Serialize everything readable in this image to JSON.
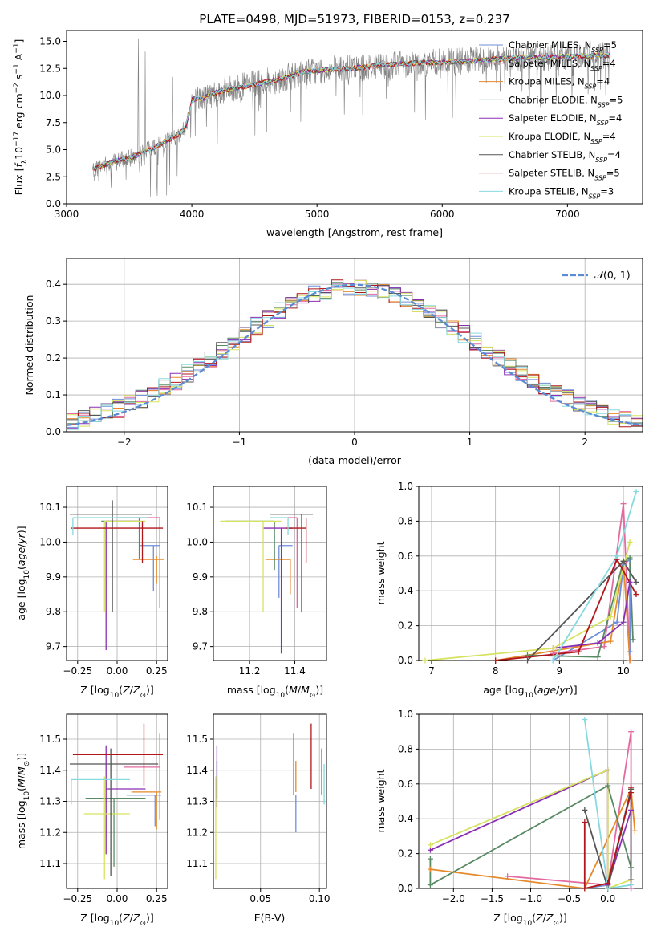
{
  "colors": {
    "Chabrier MILES": "#6f8fd8",
    "Salpeter MILES": "#e36aa0",
    "Kroupa MILES": "#e5892a",
    "Chabrier ELODIE": "#5a8a64",
    "Salpeter ELODIE": "#8a2fb4",
    "Kroupa ELODIE": "#d6e35e",
    "Chabrier STELIB": "#555555",
    "Salpeter STELIB": "#b0161a",
    "Kroupa STELIB": "#86d9df",
    "data": "#808080",
    "gauss": "#5b8bd2"
  },
  "chart_data": [
    {
      "type": "line",
      "title": "PLATE=0498, MJD=51973, FIBERID=0153, z=0.237",
      "xlabel": "wavelength [Angstrom, rest frame]",
      "ylabel": "Flux [f_λ 10^-17 erg cm^-2 s^-1 A^-1]",
      "xlim": [
        3000,
        7600
      ],
      "ylim": [
        0,
        16
      ],
      "xticks": [
        "3000",
        "4000",
        "5000",
        "6000",
        "7000"
      ],
      "yticks": [
        "0.0",
        "2.5",
        "5.0",
        "7.5",
        "10.0",
        "12.5",
        "15.0"
      ],
      "legend": "right",
      "legend_entries": [
        {
          "label": "Chabrier MILES, N",
          "sub": "SSP",
          "tail": "=5"
        },
        {
          "label": "Salpeter MILES, N",
          "sub": "SSP",
          "tail": "=4"
        },
        {
          "label": "Kroupa MILES, N",
          "sub": "SSP",
          "tail": "=4"
        },
        {
          "label": "Chabrier ELODIE, N",
          "sub": "SSP",
          "tail": "=5"
        },
        {
          "label": "Salpeter ELODIE, N",
          "sub": "SSP",
          "tail": "=4"
        },
        {
          "label": "Kroupa ELODIE, N",
          "sub": "SSP",
          "tail": "=4"
        },
        {
          "label": "Chabrier STELIB, N",
          "sub": "SSP",
          "tail": "=4"
        },
        {
          "label": "Salpeter STELIB, N",
          "sub": "SSP",
          "tail": "=5"
        },
        {
          "label": "Kroupa STELIB, N",
          "sub": "SSP",
          "tail": "=3"
        }
      ],
      "model_continuum": {
        "x": [
          3200,
          3300,
          3400,
          3500,
          3600,
          3700,
          3800,
          3900,
          3950,
          4000,
          4100,
          4200,
          4300,
          4500,
          4700,
          4900,
          5100,
          5300,
          5500,
          5800,
          6100,
          6500,
          7000,
          7300
        ],
        "y": [
          3.1,
          3.6,
          4.0,
          4.2,
          4.7,
          5.2,
          5.8,
          6.5,
          7.0,
          9.6,
          9.8,
          10.3,
          10.6,
          11.0,
          11.5,
          12.2,
          12.4,
          12.5,
          12.8,
          13.0,
          13.1,
          13.4,
          13.6,
          13.7
        ]
      }
    },
    {
      "type": "bar",
      "xlabel": "(data-model)/error",
      "ylabel": "Normed distribution",
      "xlim": [
        -2.5,
        2.5
      ],
      "ylim": [
        0,
        0.47
      ],
      "xticks": [
        "−2",
        "−1",
        "0",
        "1",
        "2"
      ],
      "yticks": [
        "0.0",
        "0.1",
        "0.2",
        "0.3",
        "0.4"
      ],
      "legend_label": "N(0,1)",
      "bin_width": 0.1,
      "normal_curve": {
        "mean": 0,
        "sigma": 1
      }
    },
    {
      "type": "scatter",
      "xlabel": "Z [log10(Z/Z⊙)]",
      "ylabel": "age  [log10(age/yr)]",
      "xlim": [
        -0.32,
        0.32
      ],
      "ylim": [
        9.66,
        10.16
      ],
      "xticks": [
        "−0.25",
        "0.00",
        "0.25"
      ],
      "yticks": [
        "9.7",
        "9.8",
        "9.9",
        "10.0",
        "10.1"
      ],
      "series": [
        {
          "name": "Chabrier MILES",
          "x": 0.23,
          "y": 9.99,
          "xerr": [
            0.09,
            0.04
          ],
          "yerr": [
            0.13,
            0.0
          ]
        },
        {
          "name": "Salpeter MILES",
          "x": 0.27,
          "y": 10.07,
          "xerr": [
            0.27,
            0.0
          ],
          "yerr": [
            0.26,
            0.0
          ]
        },
        {
          "name": "Kroupa MILES",
          "x": 0.25,
          "y": 9.95,
          "xerr": [
            0.15,
            0.05
          ],
          "yerr": [
            0.07,
            0.01
          ]
        },
        {
          "name": "Chabrier ELODIE",
          "x": 0.14,
          "y": 10.06,
          "xerr": [
            0.24,
            0.0
          ],
          "yerr": [
            0.11,
            0.01
          ]
        },
        {
          "name": "Salpeter ELODIE",
          "x": -0.07,
          "y": 10.06,
          "xerr": [
            0.0,
            0.2
          ],
          "yerr": [
            0.37,
            0.0
          ]
        },
        {
          "name": "Kroupa ELODIE",
          "x": -0.08,
          "y": 10.06,
          "xerr": [
            0.0,
            0.26
          ],
          "yerr": [
            0.26,
            0.0
          ]
        },
        {
          "name": "Chabrier STELIB",
          "x": -0.03,
          "y": 10.08,
          "xerr": [
            0.27,
            0.25
          ],
          "yerr": [
            0.28,
            0.04
          ]
        },
        {
          "name": "Salpeter STELIB",
          "x": 0.16,
          "y": 10.04,
          "xerr": [
            0.45,
            0.13
          ],
          "yerr": [
            0.1,
            0.02
          ]
        },
        {
          "name": "Kroupa STELIB",
          "x": -0.28,
          "y": 10.07,
          "xerr": [
            0.0,
            0.48
          ],
          "yerr": [
            0.05,
            0.0
          ]
        }
      ]
    },
    {
      "type": "scatter",
      "xlabel": "mass [log10(M/M⊙)]",
      "ylabel": "",
      "xlim": [
        11.04,
        11.54
      ],
      "ylim": [
        9.66,
        10.16
      ],
      "xticks": [
        "11.2",
        "11.4"
      ],
      "yticks": [
        "9.7",
        "9.8",
        "9.9",
        "10.0",
        "10.1"
      ],
      "series": [
        {
          "name": "Chabrier MILES",
          "x": 11.33,
          "y": 9.99,
          "xerr": [
            0.0,
            0.06
          ],
          "yerr": [
            0.15,
            0.0
          ]
        },
        {
          "name": "Salpeter MILES",
          "x": 11.41,
          "y": 10.07,
          "xerr": [
            0.04,
            0.0
          ],
          "yerr": [
            0.26,
            0.0
          ]
        },
        {
          "name": "Kroupa MILES",
          "x": 11.38,
          "y": 9.95,
          "xerr": [
            0.11,
            0.0
          ],
          "yerr": [
            0.1,
            0.0
          ]
        },
        {
          "name": "Chabrier ELODIE",
          "x": 11.31,
          "y": 10.06,
          "xerr": [
            0.22,
            0.0
          ],
          "yerr": [
            0.14,
            0.0
          ]
        },
        {
          "name": "Salpeter ELODIE",
          "x": 11.34,
          "y": 10.04,
          "xerr": [
            0.08,
            0.05
          ],
          "yerr": [
            0.36,
            0.0
          ]
        },
        {
          "name": "Kroupa ELODIE",
          "x": 11.26,
          "y": 10.06,
          "xerr": [
            0.19,
            0.08
          ],
          "yerr": [
            0.26,
            0.0
          ]
        },
        {
          "name": "Chabrier STELIB",
          "x": 11.43,
          "y": 10.08,
          "xerr": [
            0.14,
            0.05
          ],
          "yerr": [
            0.28,
            0.0
          ]
        },
        {
          "name": "Salpeter STELIB",
          "x": 11.45,
          "y": 10.04,
          "xerr": [
            0.09,
            0.0
          ],
          "yerr": [
            0.1,
            0.03
          ]
        },
        {
          "name": "Kroupa STELIB",
          "x": 11.37,
          "y": 10.07,
          "xerr": [
            0.08,
            0.0
          ],
          "yerr": [
            0.05,
            0.0
          ]
        }
      ]
    },
    {
      "type": "line",
      "xlabel": "age  [log10(age/yr)]",
      "ylabel": "mass weight",
      "xlim": [
        6.8,
        10.3
      ],
      "ylim": [
        0,
        1
      ],
      "xticks": [
        "7",
        "8",
        "9",
        "10"
      ],
      "yticks": [
        "0.0",
        "0.2",
        "0.4",
        "0.6",
        "0.8",
        "1.0"
      ],
      "series": [
        {
          "name": "Chabrier MILES",
          "x": [
            8.9,
            9.9,
            10.0,
            10.1,
            10.1
          ],
          "y": [
            0.0,
            0.22,
            0.55,
            0.58,
            0.05
          ]
        },
        {
          "name": "Salpeter MILES",
          "x": [
            8.9,
            9.7,
            10.0,
            10.1
          ],
          "y": [
            0.04,
            0.08,
            0.9,
            0.0
          ]
        },
        {
          "name": "Kroupa MILES",
          "x": [
            8.0,
            9.8,
            10.0,
            10.1
          ],
          "y": [
            0.0,
            0.11,
            0.57,
            0.0
          ]
        },
        {
          "name": "Chabrier ELODIE",
          "x": [
            8.5,
            9.6,
            10.0,
            10.1,
            10.15
          ],
          "y": [
            0.03,
            0.02,
            0.57,
            0.59,
            0.12
          ]
        },
        {
          "name": "Salpeter ELODIE",
          "x": [
            8.9,
            9.6,
            10.0,
            10.1
          ],
          "y": [
            0.07,
            0.1,
            0.22,
            0.45
          ]
        },
        {
          "name": "Kroupa ELODIE",
          "x": [
            6.9,
            8.9,
            9.8,
            10.1
          ],
          "y": [
            0.0,
            0.07,
            0.25,
            0.68
          ]
        },
        {
          "name": "Chabrier STELIB",
          "x": [
            8.5,
            10.0,
            10.2
          ],
          "y": [
            0.0,
            0.57,
            0.45
          ]
        },
        {
          "name": "Salpeter STELIB",
          "x": [
            8.0,
            9.3,
            9.9,
            10.2
          ],
          "y": [
            0.0,
            0.05,
            0.58,
            0.38
          ]
        },
        {
          "name": "Kroupa STELIB",
          "x": [
            8.9,
            9.9,
            10.2
          ],
          "y": [
            0.0,
            0.6,
            0.97
          ]
        }
      ]
    },
    {
      "type": "scatter",
      "xlabel": "Z [log10(Z/Z⊙)]",
      "ylabel": "mass [log10(M/M⊙)]",
      "xlim": [
        -0.32,
        0.32
      ],
      "ylim": [
        11.02,
        11.58
      ],
      "xticks": [
        "−0.25",
        "0.00",
        "0.25"
      ],
      "yticks": [
        "11.1",
        "11.2",
        "11.3",
        "11.4",
        "11.5"
      ],
      "series": [
        {
          "name": "Chabrier MILES",
          "x": 0.24,
          "y": 11.32,
          "xerr": [
            0.18,
            0.04
          ],
          "yerr": [
            0.1,
            0.0
          ]
        },
        {
          "name": "Salpeter MILES",
          "x": 0.27,
          "y": 11.41,
          "xerr": [
            0.23,
            0.0
          ],
          "yerr": [
            0.17,
            0.11
          ]
        },
        {
          "name": "Kroupa MILES",
          "x": 0.25,
          "y": 11.33,
          "xerr": [
            0.16,
            0.03
          ],
          "yerr": [
            0.12,
            0.0
          ]
        },
        {
          "name": "Chabrier ELODIE",
          "x": -0.02,
          "y": 11.31,
          "xerr": [
            0.18,
            0.2
          ],
          "yerr": [
            0.22,
            0.0
          ]
        },
        {
          "name": "Salpeter ELODIE",
          "x": -0.07,
          "y": 11.34,
          "xerr": [
            0.0,
            0.25
          ],
          "yerr": [
            0.21,
            0.14
          ]
        },
        {
          "name": "Kroupa ELODIE",
          "x": -0.08,
          "y": 11.26,
          "xerr": [
            0.13,
            0.16
          ],
          "yerr": [
            0.21,
            0.12
          ]
        },
        {
          "name": "Chabrier STELIB",
          "x": -0.04,
          "y": 11.42,
          "xerr": [
            0.26,
            0.3
          ],
          "yerr": [
            0.36,
            0.05
          ]
        },
        {
          "name": "Salpeter STELIB",
          "x": 0.17,
          "y": 11.45,
          "xerr": [
            0.45,
            0.12
          ],
          "yerr": [
            0.1,
            0.1
          ]
        },
        {
          "name": "Kroupa STELIB",
          "x": -0.29,
          "y": 11.37,
          "xerr": [
            0.0,
            0.37
          ],
          "yerr": [
            0.08,
            0.0
          ]
        }
      ]
    },
    {
      "type": "scatter",
      "xlabel": "E(B-V)",
      "ylabel": "",
      "xlim": [
        0.01,
        0.106
      ],
      "ylim": [
        11.02,
        11.58
      ],
      "xticks": [
        "0.05",
        "0.10"
      ],
      "yticks": [
        "11.1",
        "11.2",
        "11.3",
        "11.4",
        "11.5"
      ],
      "series": [
        {
          "name": "Chabrier MILES",
          "x": 0.08,
          "y": 11.32,
          "xerr": [
            0,
            0
          ],
          "yerr": [
            0.12,
            0.0
          ]
        },
        {
          "name": "Salpeter MILES",
          "x": 0.078,
          "y": 11.41,
          "xerr": [
            0,
            0
          ],
          "yerr": [
            0.09,
            0.11
          ]
        },
        {
          "name": "Kroupa MILES",
          "x": 0.08,
          "y": 11.33,
          "xerr": [
            0,
            0
          ],
          "yerr": [
            0.0,
            0.1
          ]
        },
        {
          "name": "Chabrier ELODIE",
          "x": 0.013,
          "y": 11.31,
          "xerr": [
            0,
            0
          ],
          "yerr": [
            0.0,
            0.12
          ]
        },
        {
          "name": "Salpeter ELODIE",
          "x": 0.013,
          "y": 11.38,
          "xerr": [
            0,
            0
          ],
          "yerr": [
            0.1,
            0.1
          ]
        },
        {
          "name": "Kroupa ELODIE",
          "x": 0.012,
          "y": 11.26,
          "xerr": [
            0,
            0
          ],
          "yerr": [
            0.21,
            0.12
          ]
        },
        {
          "name": "Chabrier STELIB",
          "x": 0.102,
          "y": 11.42,
          "xerr": [
            0,
            0
          ],
          "yerr": [
            0.1,
            0.05
          ]
        },
        {
          "name": "Salpeter STELIB",
          "x": 0.093,
          "y": 11.45,
          "xerr": [
            0,
            0
          ],
          "yerr": [
            0.11,
            0.1
          ]
        },
        {
          "name": "Kroupa STELIB",
          "x": 0.104,
          "y": 11.37,
          "xerr": [
            0,
            0
          ],
          "yerr": [
            0.08,
            0.05
          ]
        }
      ]
    },
    {
      "type": "line",
      "xlabel": "Z [log10(Z/Z⊙)]",
      "ylabel": "mass weight",
      "xlim": [
        -2.45,
        0.45
      ],
      "ylim": [
        0,
        1
      ],
      "xticks": [
        "−2.0",
        "−1.5",
        "−1.0",
        "−0.5",
        "0.0"
      ],
      "yticks": [
        "0.0",
        "0.2",
        "0.4",
        "0.6",
        "0.8",
        "1.0"
      ],
      "series": [
        {
          "name": "Chabrier MILES",
          "x": [
            -0.3,
            0.0,
            0.3,
            0.3
          ],
          "y": [
            0.0,
            0.02,
            0.57,
            0.0
          ]
        },
        {
          "name": "Salpeter MILES",
          "x": [
            -1.3,
            0.0,
            0.3,
            0.3
          ],
          "y": [
            0.07,
            0.02,
            0.9,
            0.0
          ]
        },
        {
          "name": "Kroupa MILES",
          "x": [
            -2.3,
            -0.3,
            0.3,
            0.35
          ],
          "y": [
            0.11,
            0.0,
            0.57,
            0.33
          ]
        },
        {
          "name": "Chabrier ELODIE",
          "x": [
            -2.3,
            -2.3,
            0.0,
            0.3,
            0.3
          ],
          "y": [
            0.17,
            0.02,
            0.59,
            0.12,
            0.05
          ]
        },
        {
          "name": "Salpeter ELODIE",
          "x": [
            -2.3,
            0.0,
            0.0,
            0.3
          ],
          "y": [
            0.22,
            0.68,
            0.02,
            0.45
          ]
        },
        {
          "name": "Kroupa ELODIE",
          "x": [
            -2.3,
            0.0,
            0.0,
            0.3
          ],
          "y": [
            0.25,
            0.68,
            0.0,
            0.05
          ]
        },
        {
          "name": "Chabrier STELIB",
          "x": [
            -0.3,
            0.0,
            0.3,
            0.3
          ],
          "y": [
            0.45,
            0.0,
            0.57,
            0.05
          ]
        },
        {
          "name": "Salpeter STELIB",
          "x": [
            -0.3,
            -0.3,
            0.0,
            0.3,
            0.3
          ],
          "y": [
            0.38,
            0.0,
            0.03,
            0.55,
            0.58
          ]
        },
        {
          "name": "Kroupa STELIB",
          "x": [
            -0.3,
            0.0,
            0.3
          ],
          "y": [
            0.97,
            0.0,
            0.02
          ]
        }
      ]
    }
  ]
}
